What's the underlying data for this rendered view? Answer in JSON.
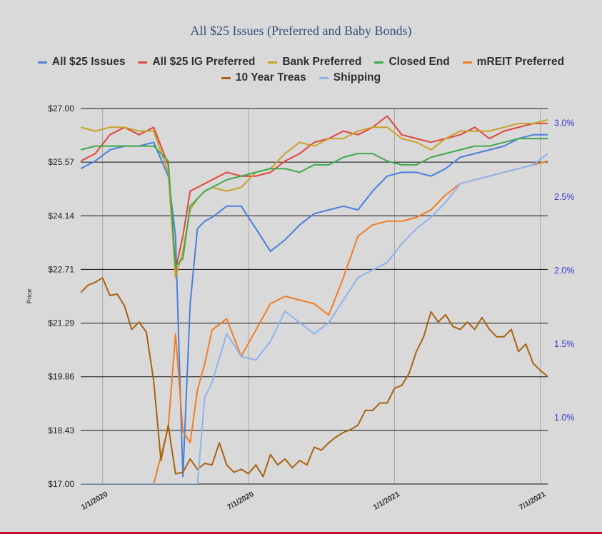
{
  "chart_data": {
    "type": "line",
    "title": "All $25 Issues (Preferred and Baby Bonds)",
    "ylabel": "Price",
    "ylim": [
      17.0,
      27.0
    ],
    "y_ticks": [
      "$27.00",
      "$25.57",
      "$24.14",
      "$22.71",
      "$21.29",
      "$19.86",
      "$18.43",
      "$17.00"
    ],
    "y2lim": [
      0.55,
      3.1
    ],
    "y2_ticks": [
      "3.0%",
      "2.5%",
      "2.0%",
      "1.5%",
      "1.0%"
    ],
    "xlim": [
      0,
      32
    ],
    "x_ticks": [
      "1/1/2020",
      "7/1/2020",
      "1/1/2021",
      "7/1/2021"
    ],
    "x_tick_positions": [
      1.5,
      11.5,
      21.5,
      31.5
    ],
    "grid": "horizontal at y ticks, vertical at x ticks",
    "legend": "top",
    "series": [
      {
        "name": "All $25 Issues",
        "color": "#4a7fdb",
        "axis": "left",
        "x": [
          0,
          1,
          2,
          3,
          4,
          5,
          6,
          6.5,
          7,
          7.5,
          8,
          8.5,
          9,
          10,
          11,
          12,
          12.5,
          13,
          14,
          15,
          16,
          17,
          18,
          19,
          20,
          21,
          22,
          23,
          24,
          25,
          26,
          27,
          28,
          29,
          30,
          31,
          32
        ],
        "y": [
          25.4,
          25.6,
          25.9,
          26.0,
          26.0,
          26.1,
          25.2,
          23.6,
          17.2,
          21.8,
          23.8,
          24.0,
          24.1,
          24.4,
          24.4,
          23.8,
          23.5,
          23.2,
          23.5,
          23.9,
          24.2,
          24.3,
          24.4,
          24.3,
          24.8,
          25.2,
          25.3,
          25.3,
          25.2,
          25.4,
          25.7,
          25.8,
          25.9,
          26.0,
          26.2,
          26.3,
          26.3
        ]
      },
      {
        "name": "All $25 IG Preferred",
        "color": "#e0453a",
        "axis": "left",
        "x": [
          0,
          1,
          2,
          3,
          4,
          5,
          6,
          6.5,
          7,
          7.5,
          8,
          8.5,
          9,
          10,
          11,
          12,
          13,
          14,
          15,
          16,
          17,
          18,
          19,
          20,
          21,
          22,
          23,
          24,
          25,
          26,
          27,
          28,
          29,
          30,
          31,
          32
        ],
        "y": [
          25.6,
          25.8,
          26.3,
          26.5,
          26.3,
          26.5,
          25.5,
          22.7,
          23.6,
          24.8,
          24.9,
          25.0,
          25.1,
          25.3,
          25.2,
          25.2,
          25.3,
          25.6,
          25.8,
          26.1,
          26.2,
          26.4,
          26.3,
          26.5,
          26.8,
          26.3,
          26.2,
          26.1,
          26.2,
          26.3,
          26.5,
          26.2,
          26.4,
          26.5,
          26.6,
          26.6
        ]
      },
      {
        "name": "Bank Preferred",
        "color": "#c7a227",
        "axis": "left",
        "x": [
          0,
          1,
          2,
          3,
          4,
          5,
          6,
          6.5,
          7,
          7.5,
          8,
          8.5,
          9,
          10,
          11,
          12,
          13,
          14,
          15,
          16,
          17,
          18,
          19,
          20,
          21,
          22,
          23,
          24,
          25,
          26,
          27,
          28,
          29,
          30,
          31,
          32
        ],
        "y": [
          26.5,
          26.4,
          26.5,
          26.5,
          26.4,
          26.4,
          25.3,
          22.5,
          23.2,
          24.3,
          24.6,
          24.8,
          24.9,
          24.8,
          24.9,
          25.3,
          25.4,
          25.8,
          26.1,
          26.0,
          26.2,
          26.2,
          26.4,
          26.5,
          26.5,
          26.2,
          26.1,
          25.9,
          26.2,
          26.4,
          26.4,
          26.4,
          26.5,
          26.6,
          26.6,
          26.7
        ]
      },
      {
        "name": "Closed End",
        "color": "#3fa94d",
        "axis": "left",
        "x": [
          0,
          1,
          2,
          3,
          4,
          5,
          6,
          6.5,
          7,
          7.5,
          8,
          8.5,
          9,
          10,
          11,
          12,
          13,
          14,
          15,
          16,
          17,
          18,
          19,
          20,
          21,
          22,
          23,
          24,
          25,
          26,
          27,
          28,
          29,
          30,
          31,
          32
        ],
        "y": [
          25.9,
          26.0,
          26.0,
          26.0,
          26.0,
          26.0,
          25.6,
          22.8,
          23.0,
          24.4,
          24.6,
          24.8,
          24.9,
          25.1,
          25.2,
          25.3,
          25.4,
          25.4,
          25.3,
          25.5,
          25.5,
          25.7,
          25.8,
          25.8,
          25.6,
          25.5,
          25.5,
          25.7,
          25.8,
          25.9,
          26.0,
          26.0,
          26.1,
          26.2,
          26.2,
          26.2
        ]
      },
      {
        "name": "mREIT Preferred",
        "color": "#f07d24",
        "axis": "left",
        "x": [
          0,
          1,
          2,
          3,
          4,
          5,
          6,
          6.5,
          7,
          7.5,
          8,
          8.5,
          9,
          10,
          11,
          12,
          13,
          14,
          15,
          16,
          17,
          18,
          19,
          20,
          21,
          22,
          23,
          24,
          25,
          26,
          27,
          28,
          29,
          30,
          31,
          32
        ],
        "y": [
          17.0,
          17.0,
          17.0,
          17.0,
          17.0,
          17.0,
          18.5,
          21.0,
          18.4,
          18.1,
          19.5,
          20.2,
          21.1,
          21.4,
          20.4,
          21.1,
          21.8,
          22.0,
          21.9,
          21.8,
          21.5,
          22.5,
          23.6,
          23.9,
          24.0,
          24.0,
          24.1,
          24.3,
          24.7,
          25.0,
          25.1,
          25.2,
          25.3,
          25.4,
          25.5,
          25.6
        ]
      },
      {
        "name": "10 Year Treas",
        "color": "#a8620f",
        "axis": "right",
        "x": [
          0,
          0.5,
          1,
          1.5,
          2,
          2.5,
          3,
          3.5,
          4,
          4.5,
          5,
          5.5,
          6,
          6.5,
          7,
          7.5,
          8,
          8.5,
          9,
          9.5,
          10,
          10.5,
          11,
          11.5,
          12,
          12.5,
          13,
          13.5,
          14,
          14.5,
          15,
          15.5,
          16,
          16.5,
          17,
          17.5,
          18,
          18.5,
          19,
          19.5,
          20,
          20.5,
          21,
          21.5,
          22,
          22.5,
          23,
          23.5,
          24,
          24.5,
          25,
          25.5,
          26,
          26.5,
          27,
          27.5,
          28,
          28.5,
          29,
          29.5,
          30,
          30.5,
          31,
          31.5,
          32
        ],
        "y": [
          1.85,
          1.9,
          1.92,
          1.95,
          1.83,
          1.84,
          1.76,
          1.6,
          1.65,
          1.58,
          1.25,
          0.71,
          0.95,
          0.62,
          0.63,
          0.72,
          0.65,
          0.69,
          0.68,
          0.83,
          0.68,
          0.63,
          0.65,
          0.62,
          0.68,
          0.6,
          0.75,
          0.68,
          0.72,
          0.66,
          0.71,
          0.68,
          0.8,
          0.78,
          0.83,
          0.87,
          0.9,
          0.92,
          0.95,
          1.05,
          1.05,
          1.1,
          1.1,
          1.2,
          1.22,
          1.3,
          1.45,
          1.55,
          1.72,
          1.65,
          1.7,
          1.62,
          1.6,
          1.65,
          1.6,
          1.68,
          1.6,
          1.55,
          1.55,
          1.6,
          1.45,
          1.5,
          1.37,
          1.32,
          1.28
        ]
      },
      {
        "name": "Shipping",
        "color": "#8fb2ef",
        "axis": "left",
        "x": [
          0,
          1,
          2,
          3,
          4,
          5,
          6,
          6.5,
          7,
          7.5,
          8,
          8.5,
          9,
          10,
          11,
          12,
          13,
          14,
          15,
          16,
          17,
          18,
          19,
          20,
          21,
          22,
          23,
          24,
          25,
          26,
          27,
          28,
          29,
          30,
          31,
          32
        ],
        "y": [
          17.0,
          17.0,
          17.0,
          17.0,
          17.0,
          17.0,
          17.0,
          17.0,
          17.0,
          17.0,
          17.0,
          19.3,
          19.7,
          21.0,
          20.4,
          20.3,
          20.8,
          21.6,
          21.3,
          21.0,
          21.3,
          21.9,
          22.5,
          22.7,
          22.9,
          23.4,
          23.8,
          24.1,
          24.5,
          25.0,
          25.1,
          25.2,
          25.3,
          25.4,
          25.5,
          25.8
        ]
      }
    ]
  }
}
